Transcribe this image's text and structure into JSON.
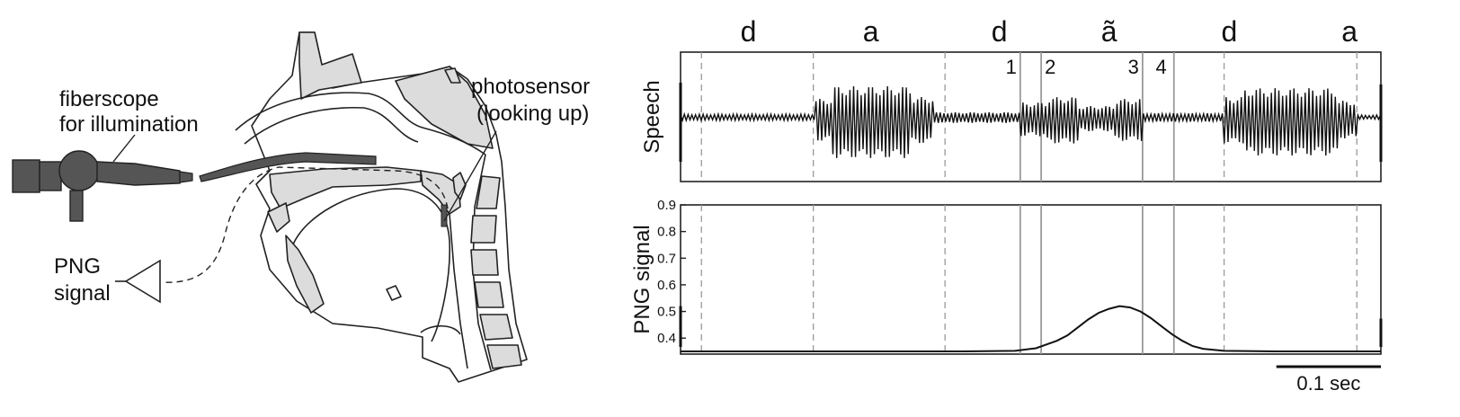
{
  "left_diagram": {
    "fiberscope_label_1": "fiberscope",
    "fiberscope_label_2": "for illumination",
    "photosensor_label_1": "photosensor",
    "photosensor_label_2": "(looking up)",
    "png_label_1": "PNG",
    "png_label_2": "signal",
    "fiber_color": "#555555",
    "tissue_color": "#dcdcdc"
  },
  "phonemes": [
    {
      "label": "d",
      "t": 0.045
    },
    {
      "label": "a",
      "t": 0.162
    },
    {
      "label": "d",
      "t": 0.285
    },
    {
      "label": "ã",
      "t": 0.39
    },
    {
      "label": "d",
      "t": 0.505
    },
    {
      "label": "a",
      "t": 0.62
    }
  ],
  "boundaries": [
    {
      "t": 0.0,
      "style": "dashed"
    },
    {
      "t": 0.107,
      "style": "dashed"
    },
    {
      "t": 0.233,
      "style": "dashed"
    },
    {
      "t": 0.305,
      "style": "solid",
      "number": "1"
    },
    {
      "t": 0.325,
      "style": "solid",
      "number": "2"
    },
    {
      "t": 0.422,
      "style": "solid",
      "number": "3"
    },
    {
      "t": 0.452,
      "style": "solid",
      "number": "4"
    },
    {
      "t": 0.5,
      "style": "dashed"
    },
    {
      "t": 0.627,
      "style": "dashed"
    }
  ],
  "speech_panel": {
    "ylabel": "Speech"
  },
  "chart_data": {
    "type": "line",
    "ylabel": "PNG signal",
    "ylim": [
      0.34,
      0.9
    ],
    "yticks": [
      0.4,
      0.5,
      0.6,
      0.7,
      0.8,
      0.9
    ],
    "ytick_labels": [
      "0.4",
      "0.5",
      "0.6",
      "0.7",
      "0.8",
      "0.9"
    ],
    "xlim": [
      -0.02,
      0.65
    ],
    "x": [
      -0.02,
      0.0,
      0.05,
      0.1,
      0.15,
      0.2,
      0.25,
      0.3,
      0.32,
      0.34,
      0.35,
      0.36,
      0.37,
      0.38,
      0.39,
      0.4,
      0.41,
      0.42,
      0.43,
      0.44,
      0.45,
      0.46,
      0.47,
      0.48,
      0.5,
      0.55,
      0.6,
      0.65
    ],
    "y": [
      0.35,
      0.35,
      0.35,
      0.35,
      0.35,
      0.35,
      0.35,
      0.352,
      0.362,
      0.39,
      0.41,
      0.44,
      0.47,
      0.495,
      0.51,
      0.52,
      0.515,
      0.5,
      0.475,
      0.445,
      0.415,
      0.39,
      0.37,
      0.36,
      0.352,
      0.35,
      0.35,
      0.35
    ],
    "scale_bar_label": "0.1 sec",
    "scale_bar_seconds": 0.1,
    "color": "#111111"
  }
}
